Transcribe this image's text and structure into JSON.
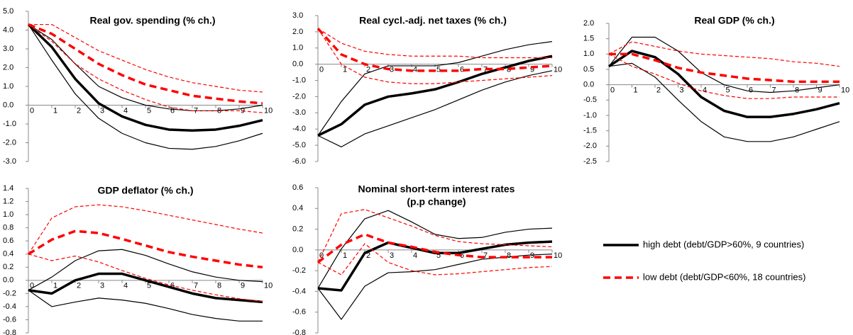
{
  "chart_data": [
    {
      "type": "line",
      "title": "Real gov. spending (% ch.)",
      "x": [
        0,
        1,
        2,
        3,
        4,
        5,
        6,
        7,
        8,
        9,
        10
      ],
      "xlim": [
        0,
        10
      ],
      "xticks": [
        0,
        1,
        2,
        3,
        4,
        5,
        6,
        7,
        8,
        9,
        10
      ],
      "ylim": [
        -3,
        5
      ],
      "yticks": [
        {
          "value": 5,
          "label": "5.0"
        },
        {
          "value": 4,
          "label": "4.0"
        },
        {
          "value": 3,
          "label": "3.0"
        },
        {
          "value": 2,
          "label": "2.0"
        },
        {
          "value": 1,
          "label": "1.0"
        },
        {
          "value": 0,
          "label": "0.0"
        },
        {
          "value": -1,
          "label": "-1.0"
        },
        {
          "value": -2,
          "label": "-2.0"
        },
        {
          "value": -3,
          "label": "-3.0"
        }
      ],
      "series": [
        {
          "name": "high debt (debt/GDP>60%, 9 countries)",
          "color": "#000000",
          "width": 3.5,
          "dash": false,
          "values": [
            4.3,
            3.1,
            1.4,
            0.1,
            -0.6,
            -1.05,
            -1.3,
            -1.35,
            -1.3,
            -1.1,
            -0.8
          ]
        },
        {
          "color": "#000000",
          "width": 1.2,
          "dash": false,
          "values": [
            4.3,
            3.5,
            2.2,
            1.0,
            0.4,
            0.0,
            -0.2,
            -0.3,
            -0.3,
            -0.2,
            0.0
          ]
        },
        {
          "color": "#000000",
          "width": 1.2,
          "dash": false,
          "values": [
            4.3,
            2.4,
            0.6,
            -0.7,
            -1.5,
            -2.0,
            -2.3,
            -2.35,
            -2.2,
            -1.9,
            -1.5
          ]
        },
        {
          "name": "low debt (debt/GDP<60%, 18 countries)",
          "color": "#ff0000",
          "width": 3.5,
          "dash": true,
          "values": [
            4.3,
            3.8,
            3.0,
            2.2,
            1.6,
            1.1,
            0.8,
            0.5,
            0.35,
            0.2,
            0.1
          ]
        },
        {
          "color": "#ff0000",
          "width": 1.2,
          "dash": true,
          "values": [
            4.3,
            4.3,
            3.6,
            2.9,
            2.4,
            1.9,
            1.5,
            1.2,
            1.0,
            0.8,
            0.7
          ]
        },
        {
          "color": "#ff0000",
          "width": 1.2,
          "dash": true,
          "values": [
            4.3,
            3.4,
            2.2,
            1.4,
            0.8,
            0.3,
            -0.1,
            -0.3,
            -0.3,
            -0.3,
            -0.4
          ]
        }
      ]
    },
    {
      "type": "line",
      "title": "Real cycl.-adj. net taxes (% ch.)",
      "x": [
        0,
        1,
        2,
        3,
        4,
        5,
        6,
        7,
        8,
        9,
        10
      ],
      "xlim": [
        0,
        10
      ],
      "xticks": [
        0,
        1,
        2,
        3,
        4,
        5,
        6,
        7,
        8,
        9,
        10
      ],
      "ylim": [
        -6,
        3
      ],
      "yticks": [
        {
          "value": 3,
          "label": "3.0"
        },
        {
          "value": 2,
          "label": "2.0"
        },
        {
          "value": 1,
          "label": "1.0"
        },
        {
          "value": 0,
          "label": "0.0"
        },
        {
          "value": -1,
          "label": "-1.0"
        },
        {
          "value": -2,
          "label": "-2.0"
        },
        {
          "value": -3,
          "label": "-3.0"
        },
        {
          "value": -4,
          "label": "-4.0"
        },
        {
          "value": -5,
          "label": "-5.0"
        },
        {
          "value": -6,
          "label": "-6.0"
        }
      ],
      "series": [
        {
          "color": "#000000",
          "width": 3.5,
          "dash": false,
          "values": [
            -4.4,
            -3.7,
            -2.5,
            -2.0,
            -1.8,
            -1.55,
            -1.1,
            -0.6,
            -0.2,
            0.2,
            0.5
          ]
        },
        {
          "color": "#000000",
          "width": 1.2,
          "dash": false,
          "values": [
            -4.4,
            -2.3,
            -0.6,
            -0.1,
            -0.1,
            -0.1,
            0.1,
            0.5,
            0.9,
            1.2,
            1.4
          ]
        },
        {
          "color": "#000000",
          "width": 1.2,
          "dash": false,
          "values": [
            -4.4,
            -5.1,
            -4.3,
            -3.8,
            -3.3,
            -2.8,
            -2.2,
            -1.6,
            -1.1,
            -0.7,
            -0.4
          ]
        },
        {
          "color": "#ff0000",
          "width": 3.5,
          "dash": true,
          "values": [
            2.2,
            0.6,
            0.0,
            -0.3,
            -0.4,
            -0.4,
            -0.4,
            -0.3,
            -0.3,
            -0.2,
            -0.1
          ]
        },
        {
          "color": "#ff0000",
          "width": 1.2,
          "dash": true,
          "values": [
            2.2,
            1.3,
            0.8,
            0.6,
            0.5,
            0.5,
            0.5,
            0.4,
            0.4,
            0.4,
            0.4
          ]
        },
        {
          "color": "#ff0000",
          "width": 1.2,
          "dash": true,
          "values": [
            2.2,
            0.0,
            -0.8,
            -1.1,
            -1.2,
            -1.2,
            -1.1,
            -1.0,
            -0.9,
            -0.8,
            -0.7
          ]
        }
      ]
    },
    {
      "type": "line",
      "title": "Real GDP (% ch.)",
      "x": [
        0,
        1,
        2,
        3,
        4,
        5,
        6,
        7,
        8,
        9,
        10
      ],
      "xlim": [
        0,
        10
      ],
      "xticks": [
        0,
        1,
        2,
        3,
        4,
        5,
        6,
        7,
        8,
        9,
        10
      ],
      "ylim": [
        -2.5,
        2
      ],
      "yticks": [
        {
          "value": 2,
          "label": "2.0"
        },
        1.5,
        {
          "value": 1,
          "label": "1.0"
        },
        0.5,
        {
          "value": 0,
          "label": "0.0"
        },
        -0.5,
        {
          "value": -1,
          "label": "-1.0"
        },
        -1.5,
        {
          "value": -2,
          "label": "-2.0"
        },
        -2.5
      ],
      "series": [
        {
          "color": "#000000",
          "width": 3.5,
          "dash": false,
          "values": [
            0.6,
            1.1,
            0.9,
            0.35,
            -0.4,
            -0.85,
            -1.05,
            -1.05,
            -0.95,
            -0.8,
            -0.6
          ]
        },
        {
          "color": "#000000",
          "width": 1.2,
          "dash": false,
          "values": [
            0.6,
            1.55,
            1.55,
            1.1,
            0.4,
            0.0,
            -0.2,
            -0.25,
            -0.2,
            -0.1,
            0.0
          ]
        },
        {
          "color": "#000000",
          "width": 1.2,
          "dash": false,
          "values": [
            0.6,
            0.7,
            0.25,
            -0.5,
            -1.2,
            -1.7,
            -1.85,
            -1.85,
            -1.7,
            -1.45,
            -1.2
          ]
        },
        {
          "color": "#ff0000",
          "width": 3.5,
          "dash": true,
          "values": [
            1.0,
            1.0,
            0.8,
            0.55,
            0.4,
            0.3,
            0.2,
            0.15,
            0.1,
            0.1,
            0.1
          ]
        },
        {
          "color": "#ff0000",
          "width": 1.2,
          "dash": true,
          "values": [
            1.0,
            1.4,
            1.25,
            1.1,
            1.0,
            0.95,
            0.9,
            0.85,
            0.75,
            0.7,
            0.6
          ]
        },
        {
          "color": "#ff0000",
          "width": 1.2,
          "dash": true,
          "values": [
            1.0,
            0.6,
            0.35,
            0.05,
            -0.2,
            -0.35,
            -0.45,
            -0.45,
            -0.4,
            -0.4,
            -0.4
          ]
        }
      ]
    },
    {
      "type": "line",
      "title": "GDP deflator (% ch.)",
      "x": [
        0,
        1,
        2,
        3,
        4,
        5,
        6,
        7,
        8,
        9,
        10
      ],
      "xlim": [
        0,
        10
      ],
      "xticks": [
        0,
        1,
        2,
        3,
        4,
        5,
        6,
        7,
        8,
        9,
        10
      ],
      "ylim": [
        -0.8,
        1.4
      ],
      "yticks": [
        1.4,
        1.2,
        {
          "value": 1,
          "label": "1.0"
        },
        0.8,
        0.6,
        0.4,
        0.2,
        {
          "value": 0,
          "label": "0.0"
        },
        -0.2,
        -0.4,
        -0.6,
        -0.8
      ],
      "series": [
        {
          "color": "#000000",
          "width": 3.5,
          "dash": false,
          "values": [
            -0.15,
            -0.2,
            0.0,
            0.1,
            0.1,
            0.0,
            -0.1,
            -0.2,
            -0.27,
            -0.3,
            -0.33
          ]
        },
        {
          "color": "#000000",
          "width": 1.2,
          "dash": false,
          "values": [
            -0.15,
            0.05,
            0.3,
            0.45,
            0.47,
            0.38,
            0.25,
            0.13,
            0.05,
            0.0,
            -0.02
          ]
        },
        {
          "color": "#000000",
          "width": 1.2,
          "dash": false,
          "values": [
            -0.15,
            -0.4,
            -0.33,
            -0.27,
            -0.3,
            -0.35,
            -0.43,
            -0.52,
            -0.58,
            -0.62,
            -0.62
          ]
        },
        {
          "color": "#ff0000",
          "width": 3.5,
          "dash": true,
          "values": [
            0.4,
            0.62,
            0.75,
            0.72,
            0.63,
            0.53,
            0.43,
            0.36,
            0.3,
            0.24,
            0.2
          ]
        },
        {
          "color": "#ff0000",
          "width": 1.2,
          "dash": true,
          "values": [
            0.4,
            0.95,
            1.12,
            1.15,
            1.12,
            1.06,
            0.99,
            0.92,
            0.85,
            0.78,
            0.72
          ]
        },
        {
          "color": "#ff0000",
          "width": 1.2,
          "dash": true,
          "values": [
            0.4,
            0.3,
            0.37,
            0.28,
            0.15,
            0.03,
            -0.07,
            -0.15,
            -0.22,
            -0.28,
            -0.32
          ]
        }
      ]
    },
    {
      "type": "line",
      "title": [
        "Nominal short-term interest rates",
        "(p.p change)"
      ],
      "x": [
        0,
        1,
        2,
        3,
        4,
        5,
        6,
        7,
        8,
        9,
        10
      ],
      "xlim": [
        0,
        10
      ],
      "xticks": [
        0,
        1,
        2,
        3,
        4,
        5,
        6,
        7,
        8,
        9,
        10
      ],
      "ylim": [
        -0.8,
        0.6
      ],
      "yticks": [
        0.6,
        0.4,
        0.2,
        {
          "value": 0,
          "label": "0.0"
        },
        -0.2,
        -0.4,
        -0.6,
        -0.8
      ],
      "series": [
        {
          "color": "#000000",
          "width": 3.5,
          "dash": false,
          "values": [
            -0.37,
            -0.39,
            -0.03,
            0.07,
            0.02,
            -0.03,
            -0.03,
            0.01,
            0.05,
            0.07,
            0.08
          ]
        },
        {
          "color": "#000000",
          "width": 1.2,
          "dash": false,
          "values": [
            -0.37,
            0.01,
            0.3,
            0.38,
            0.27,
            0.15,
            0.11,
            0.12,
            0.17,
            0.2,
            0.21
          ]
        },
        {
          "color": "#000000",
          "width": 1.2,
          "dash": false,
          "values": [
            -0.37,
            -0.67,
            -0.35,
            -0.22,
            -0.21,
            -0.19,
            -0.14,
            -0.09,
            -0.07,
            -0.05,
            -0.04
          ]
        },
        {
          "color": "#ff0000",
          "width": 3.5,
          "dash": true,
          "values": [
            -0.12,
            0.05,
            0.15,
            0.07,
            0.03,
            -0.02,
            -0.05,
            -0.07,
            -0.07,
            -0.07,
            -0.07
          ]
        },
        {
          "color": "#ff0000",
          "width": 1.2,
          "dash": true,
          "values": [
            -0.12,
            0.35,
            0.39,
            0.31,
            0.23,
            0.14,
            0.08,
            0.06,
            0.05,
            0.04,
            0.03
          ]
        },
        {
          "color": "#ff0000",
          "width": 1.2,
          "dash": true,
          "values": [
            -0.12,
            -0.24,
            0.06,
            -0.12,
            -0.2,
            -0.24,
            -0.23,
            -0.21,
            -0.19,
            -0.17,
            -0.16
          ]
        }
      ]
    }
  ]
}
